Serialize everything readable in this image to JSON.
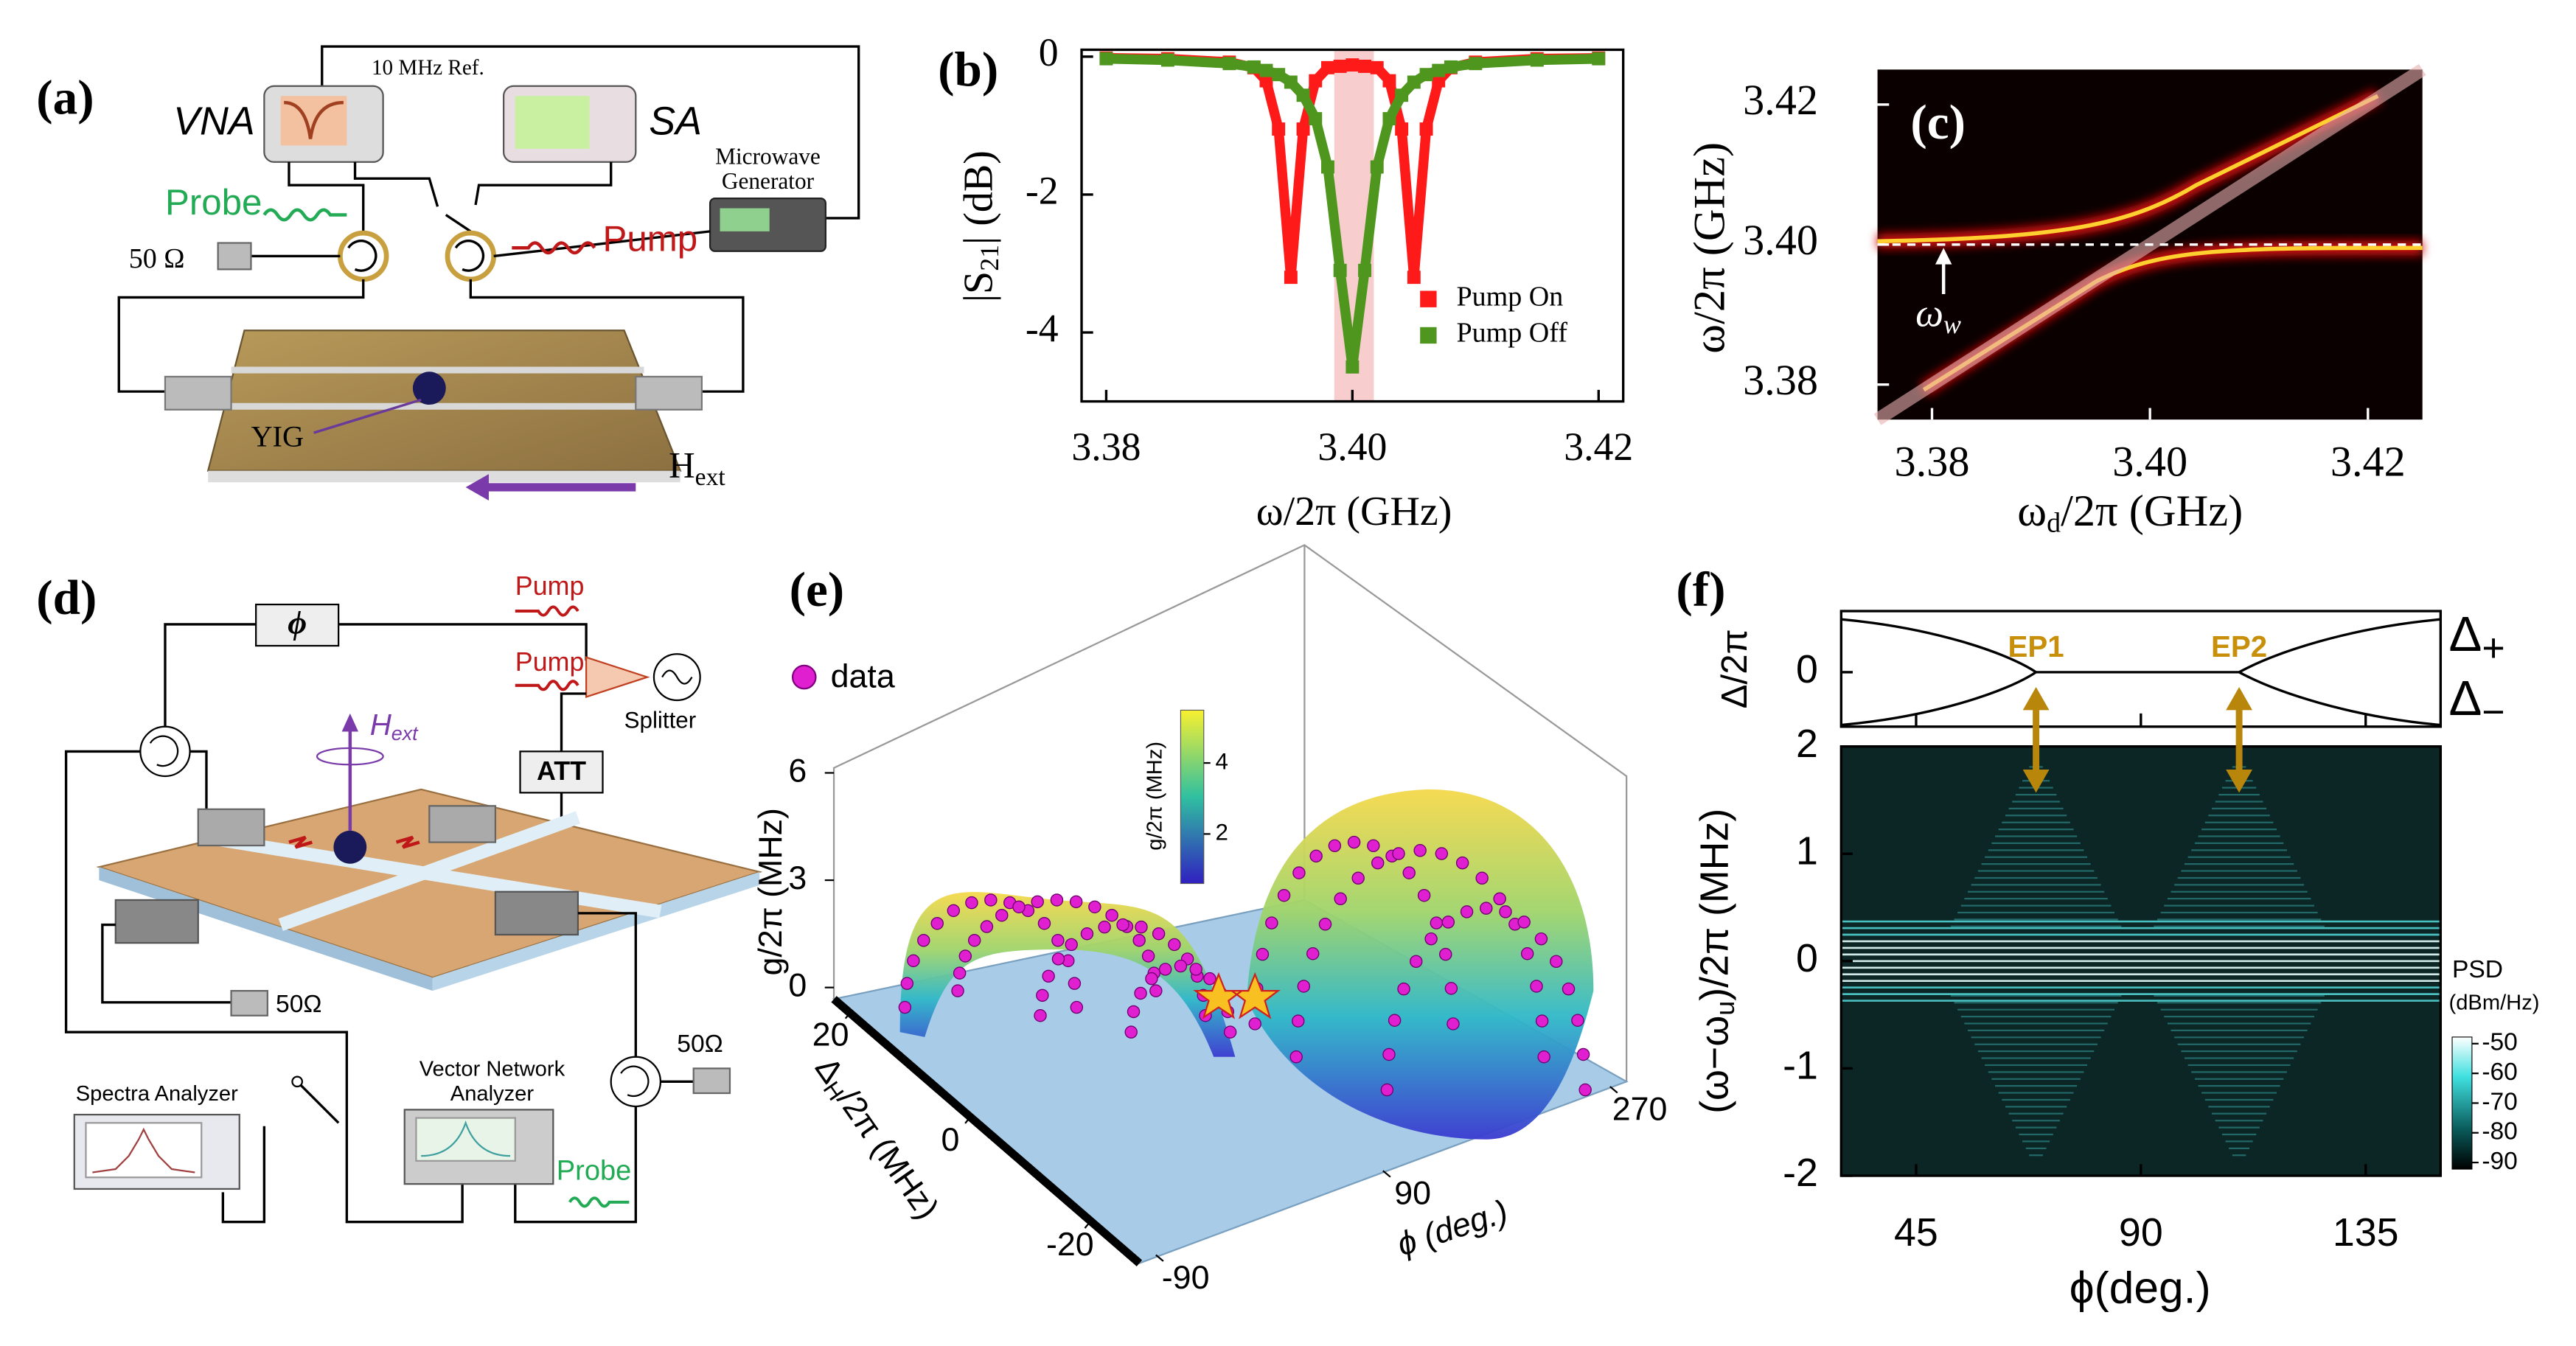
{
  "diagrams": {
    "a": {
      "label": "(a)",
      "vna": "VNA",
      "ref": "10 MHz Ref.",
      "sa": "SA",
      "generator": [
        "Microwave",
        "Generator"
      ],
      "probe": "Probe",
      "pump": "Pump",
      "load": "50 Ω",
      "yig": "YIG",
      "field": [
        "H",
        "ext"
      ]
    },
    "d": {
      "label": "(d)",
      "phase": "ϕ",
      "pump": [
        "Pump",
        "Pump"
      ],
      "splitter": "Splitter",
      "field": [
        "H",
        "ext"
      ],
      "att": "ATT",
      "load": [
        "50Ω",
        "50Ω"
      ],
      "sa": "Spectra Analyzer",
      "vna": [
        "Vector Network",
        "Analyzer"
      ],
      "probe": "Probe"
    }
  },
  "chart_data": [
    {
      "label": "(b)",
      "type": "scatter",
      "x": [
        3.38,
        3.385,
        3.39,
        3.392,
        3.393,
        3.394,
        3.395,
        3.396,
        3.397,
        3.398,
        3.399,
        3.4,
        3.401,
        3.402,
        3.403,
        3.404,
        3.405,
        3.406,
        3.407,
        3.408,
        3.41,
        3.415,
        3.42
      ],
      "series": [
        {
          "name": "Pump On",
          "color": "#ff1a1a",
          "values": [
            -0.02,
            -0.03,
            -0.08,
            -0.16,
            -0.35,
            -1.05,
            -3.2,
            -1.05,
            -0.35,
            -0.16,
            -0.14,
            -0.12,
            -0.14,
            -0.16,
            -0.35,
            -1.05,
            -3.2,
            -1.05,
            -0.35,
            -0.16,
            -0.08,
            -0.03,
            -0.02
          ]
        },
        {
          "name": "Pump Off",
          "color": "#4f961e",
          "values": [
            -0.03,
            -0.05,
            -0.1,
            -0.15,
            -0.2,
            -0.26,
            -0.37,
            -0.56,
            -0.9,
            -1.6,
            -3.1,
            -4.5,
            -3.1,
            -1.6,
            -0.9,
            -0.56,
            -0.37,
            -0.26,
            -0.2,
            -0.15,
            -0.1,
            -0.05,
            -0.03
          ]
        }
      ],
      "xlim": [
        3.378,
        3.422
      ],
      "xticks": [
        3.38,
        {
          "value": 3.4,
          "label": "3.40"
        },
        3.42
      ],
      "ylim": [
        -5,
        0.1
      ],
      "yticks": [
        -4,
        -2,
        0
      ],
      "xlabel": "ω/2π  (GHz)",
      "ylabel": [
        "|S",
        "21",
        "| (dB)"
      ],
      "legend": "lower right"
    },
    {
      "label": "(c)",
      "type": "heatmap",
      "xlim": [
        3.375,
        3.425
      ],
      "xticks": [
        3.38,
        {
          "value": 3.4,
          "label": "3.40"
        },
        3.42
      ],
      "ylim": [
        3.375,
        3.425
      ],
      "yticks": [
        3.38,
        {
          "value": 3.4,
          "label": "3.40"
        },
        3.42
      ],
      "xlabel": [
        "ω",
        "d",
        "/2π  (GHz)"
      ],
      "ylabel": "ω/2π  (GHz)",
      "annotation": [
        "ω",
        "w"
      ]
    },
    {
      "label": "(e)",
      "type": "surface3d",
      "legend": "data",
      "zlabel": "g/2π (MHz)",
      "zticks": [
        0,
        3,
        6
      ],
      "ylabel": [
        "Δ",
        "H",
        "/2π (MHz)"
      ],
      "yticks": [
        20,
        0,
        -20
      ],
      "xlabel": "ϕ (deg.)",
      "xticks": [
        -90,
        90,
        270
      ],
      "colorbar": {
        "label": "g/2π (MHz)",
        "ticks": [
          2,
          4
        ]
      }
    },
    {
      "label": "(f)",
      "type": "heatmap",
      "xlim": [
        30,
        150
      ],
      "xticks": [
        45,
        90,
        135
      ],
      "ylim": [
        -2,
        2
      ],
      "yticks": [
        -2,
        -1,
        0,
        1,
        2
      ],
      "xlabel": "ϕ(deg.)",
      "ylabel": [
        "(ω−ω",
        "u",
        ")/2π (MHz)"
      ],
      "top": {
        "ylabel": "Δ/2π",
        "yticks": [
          0
        ],
        "branches": [
          [
            "Δ",
            "+"
          ],
          [
            "Δ",
            "−"
          ]
        ],
        "eps": [
          "EP1",
          "EP2"
        ]
      },
      "colorbar": {
        "title": "PSD",
        "unit": "(dBm/Hz)",
        "ticks": [
          -50,
          -60,
          -70,
          -80,
          -90
        ]
      }
    }
  ]
}
